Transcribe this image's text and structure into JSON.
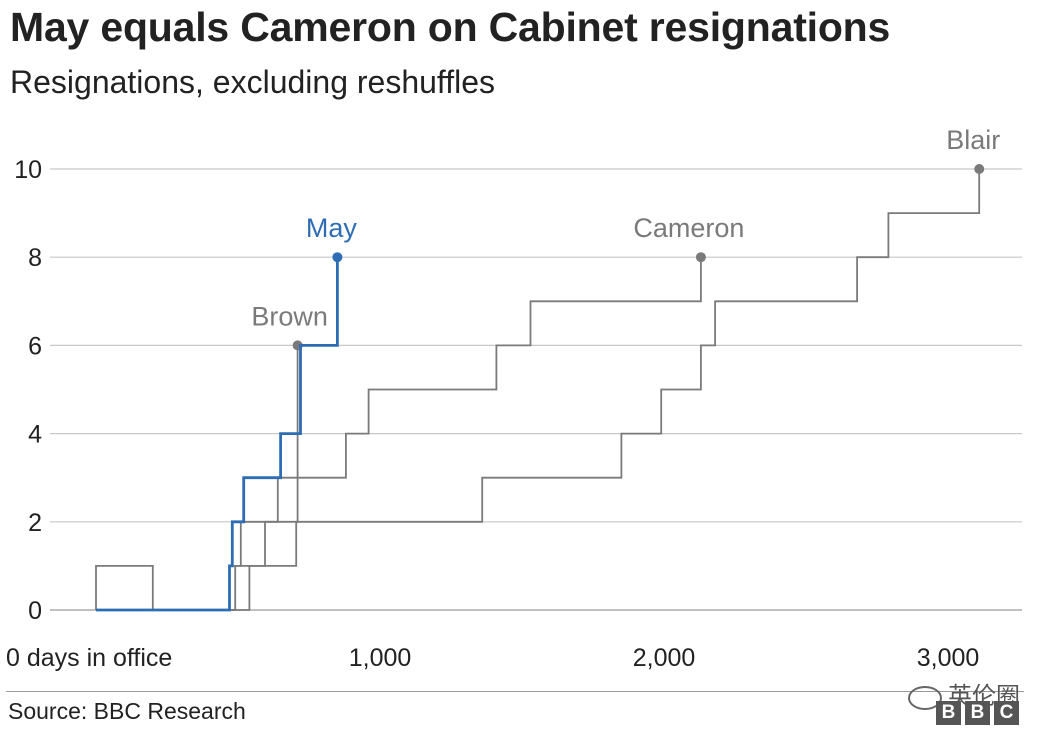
{
  "title": "May equals Cameron on Cabinet resignations",
  "subtitle": "Resignations, excluding reshuffles",
  "source": "Source: BBC Research",
  "watermark": "英伦圈",
  "logo_letters": [
    "B",
    "B",
    "C"
  ],
  "colors": {
    "may": "#2e6db4",
    "others": "#7a7a7a",
    "grid": "#c8c8c8",
    "axis": "#222222"
  },
  "chart_data": {
    "type": "line",
    "step": true,
    "title": "May equals Cameron on Cabinet resignations",
    "subtitle": "Resignations, excluding reshuffles",
    "xlabel": "",
    "ylabel": "",
    "xlim": [
      0,
      3300
    ],
    "ylim": [
      0,
      10
    ],
    "x_ticks": [
      {
        "value": 0,
        "label": "0 days in office"
      },
      {
        "value": 1000,
        "label": "1,000"
      },
      {
        "value": 2000,
        "label": "2,000"
      },
      {
        "value": 3000,
        "label": "3,000"
      }
    ],
    "y_ticks": [
      0,
      2,
      4,
      6,
      8,
      10
    ],
    "grid": true,
    "series": [
      {
        "name": "Blair",
        "highlight": false,
        "points": [
          [
            0,
            0
          ],
          [
            540,
            0
          ],
          [
            540,
            1
          ],
          [
            705,
            1
          ],
          [
            705,
            2
          ],
          [
            1360,
            2
          ],
          [
            1360,
            3
          ],
          [
            1850,
            3
          ],
          [
            1850,
            4
          ],
          [
            1990,
            4
          ],
          [
            1990,
            5
          ],
          [
            2130,
            5
          ],
          [
            2130,
            6
          ],
          [
            2180,
            6
          ],
          [
            2180,
            7
          ],
          [
            2680,
            7
          ],
          [
            2680,
            8
          ],
          [
            2790,
            8
          ],
          [
            2790,
            9
          ],
          [
            3110,
            9
          ],
          [
            3110,
            10
          ]
        ]
      },
      {
        "name": "Cameron",
        "highlight": false,
        "points": [
          [
            0,
            0
          ],
          [
            470,
            0
          ],
          [
            470,
            1
          ],
          [
            595,
            1
          ],
          [
            595,
            2
          ],
          [
            710,
            2
          ],
          [
            710,
            3
          ],
          [
            880,
            3
          ],
          [
            880,
            4
          ],
          [
            960,
            4
          ],
          [
            960,
            5
          ],
          [
            1410,
            5
          ],
          [
            1410,
            6
          ],
          [
            1530,
            6
          ],
          [
            1530,
            7
          ],
          [
            2130,
            7
          ],
          [
            2130,
            8
          ]
        ]
      },
      {
        "name": "Brown",
        "highlight": false,
        "points": [
          [
            0,
            0
          ],
          [
            0,
            1
          ],
          [
            200,
            1
          ],
          [
            200,
            0
          ],
          [
            490,
            0
          ],
          [
            490,
            1
          ],
          [
            510,
            1
          ],
          [
            510,
            2
          ],
          [
            640,
            2
          ],
          [
            640,
            3
          ],
          [
            710,
            3
          ],
          [
            710,
            6
          ]
        ]
      },
      {
        "name": "May",
        "highlight": true,
        "points": [
          [
            0,
            0
          ],
          [
            470,
            0
          ],
          [
            470,
            1
          ],
          [
            480,
            1
          ],
          [
            480,
            2
          ],
          [
            520,
            2
          ],
          [
            520,
            3
          ],
          [
            650,
            3
          ],
          [
            650,
            4
          ],
          [
            720,
            4
          ],
          [
            720,
            6
          ],
          [
            850,
            6
          ],
          [
            850,
            8
          ]
        ]
      }
    ]
  }
}
